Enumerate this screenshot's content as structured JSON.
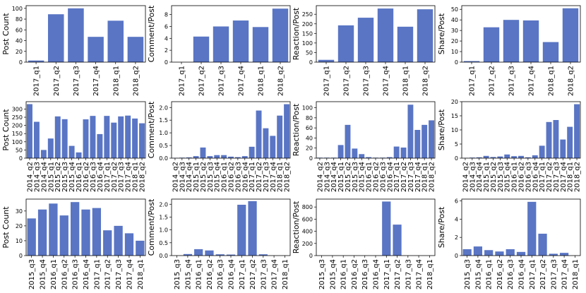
{
  "chart_data": [
    {
      "type": "bar",
      "row": 0,
      "col": 0,
      "ylabel": "Post Count",
      "categories": [
        "2017_q1",
        "2017_q2",
        "2017_q3",
        "2017_q4",
        "2018_q1",
        "2018_q2"
      ],
      "values": [
        3,
        89,
        100,
        47,
        77,
        47
      ],
      "ylim": [
        0,
        105
      ],
      "yticks": [
        0,
        20,
        40,
        60,
        80,
        100
      ]
    },
    {
      "type": "bar",
      "row": 0,
      "col": 1,
      "ylabel": "Comment/Post",
      "categories": [
        "2017_q1",
        "2017_q2",
        "2017_q3",
        "2017_q4",
        "2018_q1",
        "2018_q2"
      ],
      "values": [
        0,
        4.3,
        6.0,
        7.0,
        5.9,
        9.0
      ],
      "ylim": [
        0,
        9.5
      ],
      "yticks": [
        0,
        2,
        4,
        6,
        8
      ]
    },
    {
      "type": "bar",
      "row": 0,
      "col": 2,
      "ylabel": "Reaction/Post",
      "categories": [
        "2017_q1",
        "2017_q2",
        "2017_q3",
        "2017_q4",
        "2018_q1",
        "2018_q2"
      ],
      "values": [
        12,
        192,
        232,
        280,
        185,
        276
      ],
      "ylim": [
        0,
        295
      ],
      "yticks": [
        0,
        50,
        100,
        150,
        200,
        250
      ]
    },
    {
      "type": "bar",
      "row": 0,
      "col": 3,
      "ylabel": "Share/Post",
      "categories": [
        "2017_q1",
        "2017_q2",
        "2017_q3",
        "2017_q4",
        "2018_q1",
        "2018_q2"
      ],
      "values": [
        1,
        33,
        40,
        39.5,
        19,
        51
      ],
      "ylim": [
        0,
        53.5
      ],
      "yticks": [
        0,
        10,
        20,
        30,
        40,
        50
      ]
    },
    {
      "type": "bar",
      "row": 1,
      "col": 0,
      "ylabel": "Post Count",
      "categories": [
        "2014_q2",
        "2014_q3",
        "2014_q4",
        "2015_q1",
        "2015_q2",
        "2015_q3",
        "2015_q4",
        "2016_q1",
        "2016_q2",
        "2016_q3",
        "2016_q4",
        "2017_q1",
        "2017_q2",
        "2017_q3",
        "2017_q4",
        "2018_q1",
        "2018_q2"
      ],
      "values": [
        330,
        222,
        50,
        120,
        255,
        238,
        75,
        35,
        237,
        258,
        147,
        258,
        217,
        255,
        260,
        242,
        213
      ],
      "ylim": [
        0,
        345
      ],
      "yticks": [
        0,
        50,
        100,
        150,
        200,
        250,
        300
      ]
    },
    {
      "type": "bar",
      "row": 1,
      "col": 1,
      "ylabel": "Comment/Post",
      "categories": [
        "2014_q2",
        "2014_q3",
        "2014_q4",
        "2015_q1",
        "2015_q2",
        "2015_q3",
        "2015_q4",
        "2016_q1",
        "2016_q2",
        "2016_q3",
        "2016_q4",
        "2017_q1",
        "2017_q2",
        "2017_q3",
        "2017_q4",
        "2018_q1",
        "2018_q2"
      ],
      "values": [
        0.01,
        0.02,
        0.03,
        0.08,
        0.42,
        0.08,
        0.12,
        0.12,
        0.06,
        0.04,
        0.08,
        0.45,
        1.88,
        1.18,
        0.88,
        1.68,
        2.13
      ],
      "ylim": [
        0,
        2.23
      ],
      "yticks": [
        0.0,
        0.5,
        1.0,
        1.5,
        2.0
      ]
    },
    {
      "type": "bar",
      "row": 1,
      "col": 2,
      "ylabel": "Reaction/Post",
      "categories": [
        "2014_q2",
        "2014_q3",
        "2014_q4",
        "2015_q1",
        "2015_q2",
        "2015_q3",
        "2015_q4",
        "2016_q1",
        "2016_q2",
        "2016_q3",
        "2016_q4",
        "2017_q1",
        "2017_q2",
        "2017_q3",
        "2017_q4",
        "2018_q1",
        "2018_q2"
      ],
      "values": [
        1,
        1,
        1,
        26,
        66,
        19,
        8,
        2,
        1,
        1,
        2,
        23,
        21,
        106,
        56,
        66,
        75
      ],
      "ylim": [
        0,
        112
      ],
      "yticks": [
        0,
        20,
        40,
        60,
        80,
        100
      ]
    },
    {
      "type": "bar",
      "row": 1,
      "col": 3,
      "ylabel": "Share/Post",
      "categories": [
        "2014_q2",
        "2014_q3",
        "2014_q4",
        "2015_q1",
        "2015_q2",
        "2015_q3",
        "2015_q4",
        "2016_q1",
        "2016_q2",
        "2016_q3",
        "2016_q4",
        "2017_q1",
        "2017_q2",
        "2017_q3",
        "2017_q4",
        "2018_q1",
        "2018_q2"
      ],
      "values": [
        0.1,
        0.2,
        0.3,
        0.8,
        0.4,
        0.6,
        1.3,
        0.7,
        0.8,
        0.3,
        1.0,
        4.4,
        12.8,
        13.5,
        6.6,
        11.1,
        19.1
      ],
      "ylim": [
        0,
        20
      ],
      "yticks": [
        0,
        5,
        10,
        15,
        20
      ]
    },
    {
      "type": "bar",
      "row": 2,
      "col": 0,
      "ylabel": "Post Count",
      "categories": [
        "2015_q3",
        "2015_q4",
        "2016_q1",
        "2016_q2",
        "2016_q3",
        "2016_q4",
        "2017_q1",
        "2017_q2",
        "2017_q3",
        "2017_q4",
        "2018_q1"
      ],
      "values": [
        25,
        31,
        35,
        27,
        36,
        31,
        32,
        17,
        20,
        15,
        10
      ],
      "ylim": [
        0,
        38
      ],
      "yticks": [
        0,
        10,
        20,
        30
      ]
    },
    {
      "type": "bar",
      "row": 2,
      "col": 1,
      "ylabel": "Comment/Post",
      "categories": [
        "2015_q3",
        "2015_q4",
        "2016_q1",
        "2016_q2",
        "2016_q3",
        "2016_q4",
        "2017_q1",
        "2017_q2",
        "2017_q3",
        "2017_q4",
        "2018_q1"
      ],
      "values": [
        0,
        0.06,
        0.25,
        0.2,
        0.05,
        0.04,
        1.98,
        2.12,
        0.05,
        0,
        0
      ],
      "ylim": [
        0,
        2.2
      ],
      "yticks": [
        0.0,
        0.5,
        1.0,
        1.5,
        2.0
      ]
    },
    {
      "type": "bar",
      "row": 2,
      "col": 2,
      "ylabel": "Reaction/Post",
      "categories": [
        "2015_q3",
        "2015_q4",
        "2016_q1",
        "2016_q2",
        "2016_q3",
        "2016_q4",
        "2017_q1",
        "2017_q2",
        "2017_q3",
        "2017_q4",
        "2018_q1"
      ],
      "values": [
        0,
        0,
        0,
        0,
        0,
        0,
        890,
        510,
        0,
        0,
        0
      ],
      "ylim": [
        0,
        930
      ],
      "yticks": [
        0,
        200,
        400,
        600,
        800
      ]
    },
    {
      "type": "bar",
      "row": 2,
      "col": 3,
      "ylabel": "Share/Post",
      "categories": [
        "2015_q3",
        "2015_q4",
        "2016_q1",
        "2016_q2",
        "2016_q3",
        "2016_q4",
        "2017_q1",
        "2017_q2",
        "2017_q3",
        "2017_q4",
        "2018_q1"
      ],
      "values": [
        0.7,
        1.0,
        0.6,
        0.45,
        0.7,
        0.4,
        5.9,
        2.4,
        0.2,
        0.3,
        0
      ],
      "ylim": [
        0,
        6.2
      ],
      "yticks": [
        0,
        2,
        4,
        6
      ]
    }
  ]
}
